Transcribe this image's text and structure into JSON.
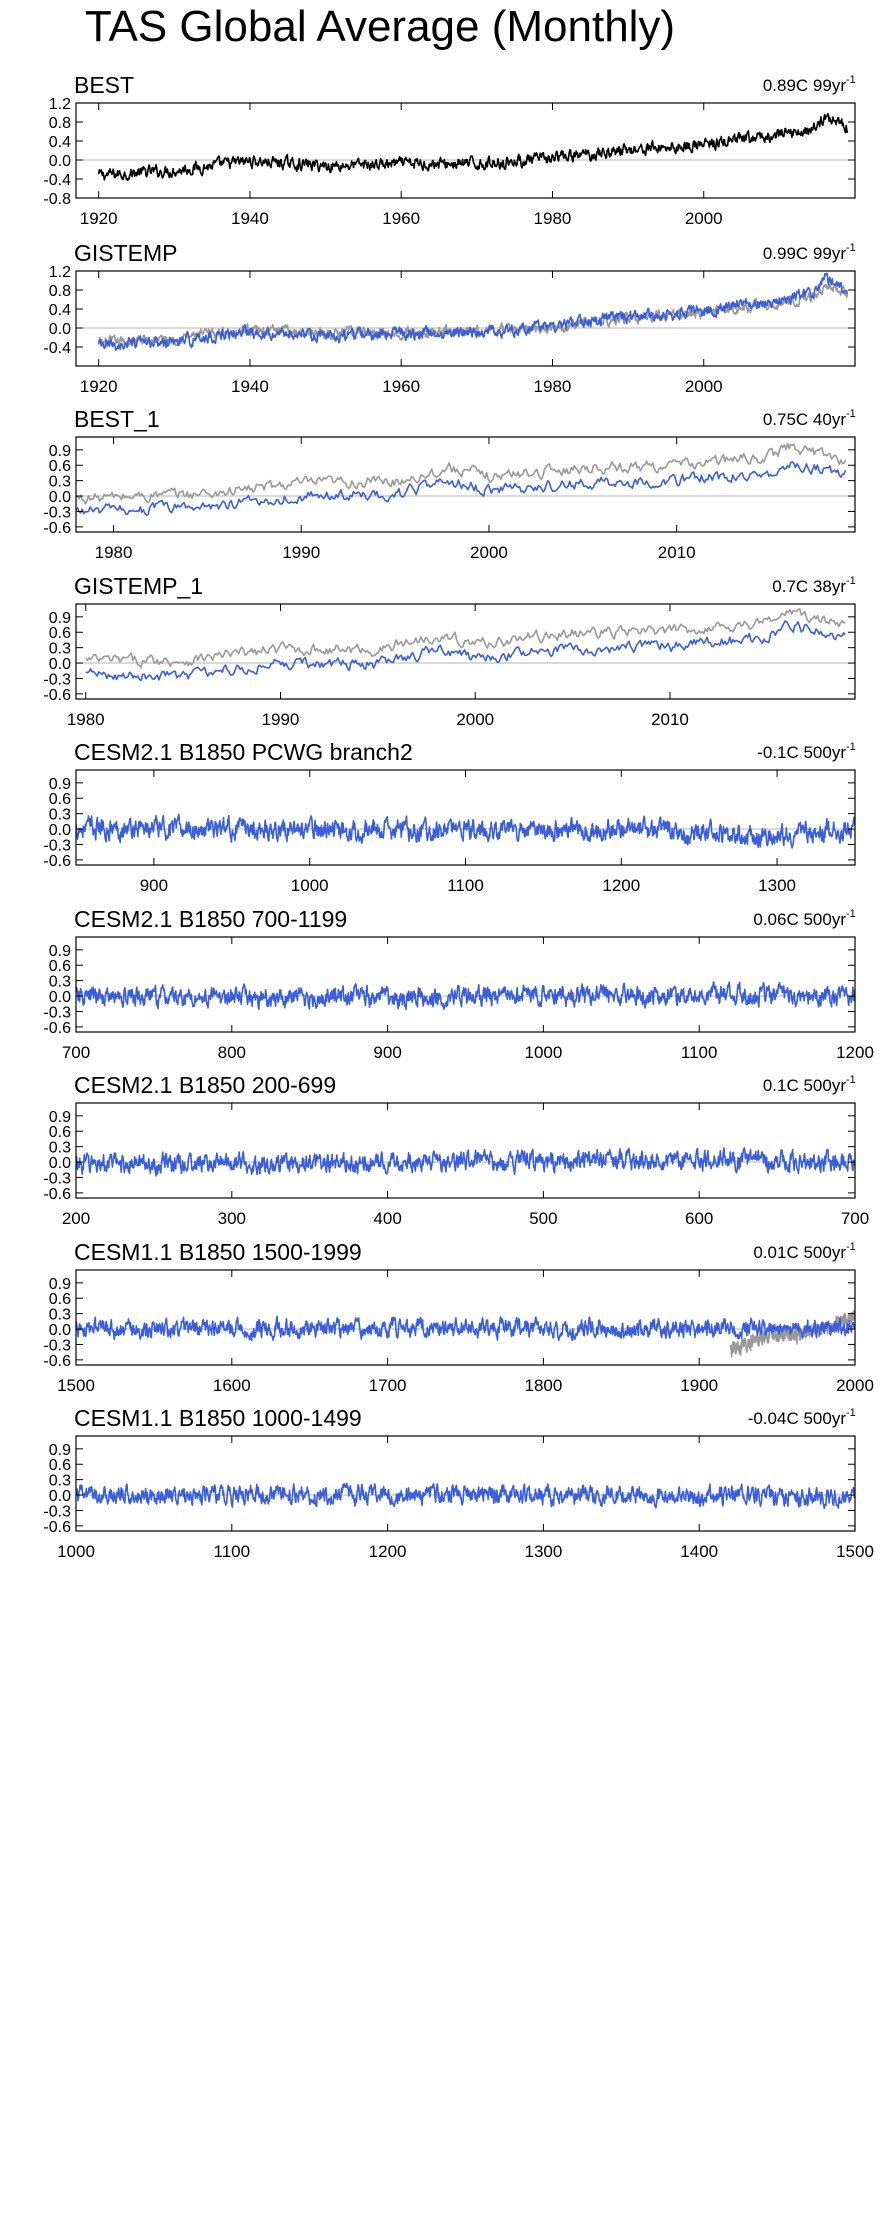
{
  "page": {
    "title": "TAS Global Average (Monthly)"
  },
  "colors": {
    "primary_series": "#3b5fd9",
    "reference_series": "#999999",
    "observation_series": "#000000",
    "zero_line": "#b3b3b3"
  },
  "chart_data": [
    {
      "type": "line",
      "title": "BEST",
      "trend_label": "0.89C 99yr",
      "trend_exponent": "-1",
      "xlim": [
        1917,
        2020
      ],
      "ylim": [
        -0.8,
        1.2
      ],
      "xticks": [
        1920,
        1940,
        1960,
        1980,
        2000
      ],
      "yticks": [
        -0.8,
        -0.4,
        0.0,
        0.4,
        0.8,
        1.2
      ],
      "ytick_labels": [
        "-0.8",
        "-0.4",
        "0.0",
        "0.4",
        "0.8",
        "1.2"
      ],
      "series": [
        {
          "name": "BEST",
          "color": "#000000",
          "start": 1920,
          "end": 2019,
          "n": 1188,
          "anchors": [
            [
              1920,
              -0.32
            ],
            [
              1930,
              -0.22
            ],
            [
              1940,
              -0.02
            ],
            [
              1950,
              -0.12
            ],
            [
              1960,
              -0.08
            ],
            [
              1970,
              -0.08
            ],
            [
              1980,
              0.03
            ],
            [
              1990,
              0.22
            ],
            [
              2000,
              0.32
            ],
            [
              2010,
              0.52
            ],
            [
              2015,
              0.68
            ],
            [
              2016,
              0.92
            ],
            [
              2019,
              0.72
            ]
          ],
          "noise": 0.1
        }
      ]
    },
    {
      "type": "line",
      "title": "GISTEMP",
      "trend_label": "0.99C 99yr",
      "trend_exponent": "-1",
      "xlim": [
        1917,
        2020
      ],
      "ylim": [
        -0.8,
        1.2
      ],
      "xticks": [
        1920,
        1940,
        1960,
        1980,
        2000
      ],
      "yticks": [
        -0.4,
        0.0,
        0.4,
        0.8,
        1.2
      ],
      "ytick_labels": [
        "-0.4",
        "0.0",
        "0.4",
        "0.8",
        "1.2"
      ],
      "series": [
        {
          "name": "BEST",
          "color": "#999999",
          "start": 1920,
          "end": 2019,
          "n": 1188,
          "anchors": [
            [
              1920,
              -0.32
            ],
            [
              1930,
              -0.22
            ],
            [
              1940,
              -0.02
            ],
            [
              1950,
              -0.12
            ],
            [
              1960,
              -0.08
            ],
            [
              1970,
              -0.08
            ],
            [
              1980,
              0.03
            ],
            [
              1990,
              0.22
            ],
            [
              2000,
              0.32
            ],
            [
              2010,
              0.52
            ],
            [
              2015,
              0.68
            ],
            [
              2016,
              0.92
            ],
            [
              2019,
              0.72
            ]
          ],
          "noise": 0.09
        },
        {
          "name": "GISTEMP",
          "color": "#3b5fd9",
          "start": 1920,
          "end": 2019,
          "n": 1188,
          "anchors": [
            [
              1920,
              -0.38
            ],
            [
              1930,
              -0.3
            ],
            [
              1940,
              -0.06
            ],
            [
              1950,
              -0.18
            ],
            [
              1960,
              -0.1
            ],
            [
              1970,
              -0.1
            ],
            [
              1980,
              0.05
            ],
            [
              1990,
              0.24
            ],
            [
              2000,
              0.36
            ],
            [
              2010,
              0.6
            ],
            [
              2015,
              0.78
            ],
            [
              2016,
              1.05
            ],
            [
              2019,
              0.8
            ]
          ],
          "noise": 0.1
        }
      ]
    },
    {
      "type": "line",
      "title": "BEST_1",
      "trend_label": "0.75C 40yr",
      "trend_exponent": "-1",
      "xlim": [
        1978,
        2019.5
      ],
      "ylim": [
        -0.7,
        1.15
      ],
      "xticks": [
        1980,
        1990,
        2000,
        2010
      ],
      "yticks": [
        -0.6,
        -0.3,
        0.0,
        0.3,
        0.6,
        0.9
      ],
      "ytick_labels": [
        "-0.6",
        "-0.3",
        "0.0",
        "0.3",
        "0.6",
        "0.9"
      ],
      "series": [
        {
          "name": "BEST",
          "color": "#999999",
          "start": 1978,
          "end": 2019,
          "n": 492,
          "anchors": [
            [
              1978,
              -0.05
            ],
            [
              1985,
              0.05
            ],
            [
              1990,
              0.25
            ],
            [
              1995,
              0.28
            ],
            [
              1998,
              0.55
            ],
            [
              2000,
              0.38
            ],
            [
              2005,
              0.55
            ],
            [
              2010,
              0.6
            ],
            [
              2015,
              0.78
            ],
            [
              2016,
              0.98
            ],
            [
              2019,
              0.7
            ]
          ],
          "noise": 0.09
        },
        {
          "name": "BEST_1",
          "color": "#3b5fd9",
          "start": 1978,
          "end": 2019,
          "n": 492,
          "anchors": [
            [
              1978,
              -0.3
            ],
            [
              1985,
              -0.2
            ],
            [
              1990,
              0.0
            ],
            [
              1995,
              0.02
            ],
            [
              1998,
              0.28
            ],
            [
              2000,
              0.1
            ],
            [
              2005,
              0.25
            ],
            [
              2010,
              0.3
            ],
            [
              2015,
              0.45
            ],
            [
              2016,
              0.65
            ],
            [
              2019,
              0.42
            ]
          ],
          "noise": 0.09
        }
      ]
    },
    {
      "type": "line",
      "title": "GISTEMP_1",
      "trend_label": "0.7C 38yr",
      "trend_exponent": "-1",
      "xlim": [
        1979.5,
        2019.5
      ],
      "ylim": [
        -0.7,
        1.15
      ],
      "xticks": [
        1980,
        1990,
        2000,
        2010
      ],
      "yticks": [
        -0.6,
        -0.3,
        0.0,
        0.3,
        0.6,
        0.9
      ],
      "ytick_labels": [
        "-0.6",
        "-0.3",
        "0.0",
        "0.3",
        "0.6",
        "0.9"
      ],
      "series": [
        {
          "name": "BEST",
          "color": "#999999",
          "start": 1980,
          "end": 2019,
          "n": 468,
          "anchors": [
            [
              1980,
              0.05
            ],
            [
              1985,
              0.05
            ],
            [
              1990,
              0.28
            ],
            [
              1995,
              0.25
            ],
            [
              1998,
              0.55
            ],
            [
              2000,
              0.38
            ],
            [
              2005,
              0.58
            ],
            [
              2010,
              0.62
            ],
            [
              2015,
              0.8
            ],
            [
              2016,
              1.0
            ],
            [
              2019,
              0.72
            ]
          ],
          "noise": 0.09
        },
        {
          "name": "GISTEMP_1",
          "color": "#3b5fd9",
          "start": 1980,
          "end": 2019,
          "n": 468,
          "anchors": [
            [
              1980,
              -0.22
            ],
            [
              1985,
              -0.25
            ],
            [
              1990,
              0.0
            ],
            [
              1995,
              -0.02
            ],
            [
              1998,
              0.25
            ],
            [
              2000,
              0.08
            ],
            [
              2005,
              0.28
            ],
            [
              2010,
              0.32
            ],
            [
              2015,
              0.5
            ],
            [
              2016,
              0.75
            ],
            [
              2019,
              0.5
            ]
          ],
          "noise": 0.09
        }
      ]
    },
    {
      "type": "line",
      "title": "CESM2.1 B1850 PCWG branch2",
      "trend_label": "-0.1C 500yr",
      "trend_exponent": "-1",
      "xlim": [
        850,
        1350
      ],
      "ylim": [
        -0.7,
        1.15
      ],
      "xticks": [
        900,
        1000,
        1100,
        1200,
        1300
      ],
      "yticks": [
        -0.6,
        -0.3,
        0.0,
        0.3,
        0.6,
        0.9
      ],
      "ytick_labels": [
        "-0.6",
        "-0.3",
        "0.0",
        "0.3",
        "0.6",
        "0.9"
      ],
      "series": [
        {
          "name": "PCWG branch2",
          "color": "#3b5fd9",
          "start": 850,
          "end": 1350,
          "n": 1500,
          "anchors": [
            [
              850,
              0.02
            ],
            [
              1000,
              0.0
            ],
            [
              1100,
              -0.02
            ],
            [
              1200,
              0.0
            ],
            [
              1280,
              -0.12
            ],
            [
              1350,
              -0.02
            ]
          ],
          "noise": 0.16
        }
      ]
    },
    {
      "type": "line",
      "title": "CESM2.1 B1850 700-1199",
      "trend_label": "0.06C 500yr",
      "trend_exponent": "-1",
      "xlim": [
        700,
        1200
      ],
      "ylim": [
        -0.7,
        1.15
      ],
      "xticks": [
        700,
        800,
        900,
        1000,
        1100,
        1200
      ],
      "yticks": [
        -0.6,
        -0.3,
        0.0,
        0.3,
        0.6,
        0.9
      ],
      "ytick_labels": [
        "-0.6",
        "-0.3",
        "0.0",
        "0.3",
        "0.6",
        "0.9"
      ],
      "series": [
        {
          "name": "700-1199",
          "color": "#3b5fd9",
          "start": 700,
          "end": 1200,
          "n": 1500,
          "anchors": [
            [
              700,
              -0.02
            ],
            [
              850,
              -0.03
            ],
            [
              1000,
              0.03
            ],
            [
              1200,
              0.01
            ]
          ],
          "noise": 0.15
        }
      ]
    },
    {
      "type": "line",
      "title": "CESM2.1 B1850 200-699",
      "trend_label": "0.1C 500yr",
      "trend_exponent": "-1",
      "xlim": [
        200,
        700
      ],
      "ylim": [
        -0.7,
        1.15
      ],
      "xticks": [
        200,
        300,
        400,
        500,
        600,
        700
      ],
      "yticks": [
        -0.6,
        -0.3,
        0.0,
        0.3,
        0.6,
        0.9
      ],
      "ytick_labels": [
        "-0.6",
        "-0.3",
        "0.0",
        "0.3",
        "0.6",
        "0.9"
      ],
      "series": [
        {
          "name": "200-699",
          "color": "#3b5fd9",
          "start": 200,
          "end": 700,
          "n": 1500,
          "anchors": [
            [
              200,
              -0.03
            ],
            [
              350,
              -0.02
            ],
            [
              500,
              0.03
            ],
            [
              700,
              0.02
            ]
          ],
          "noise": 0.15
        }
      ]
    },
    {
      "type": "line",
      "title": "CESM1.1 B1850 1500-1999",
      "trend_label": "0.01C 500yr",
      "trend_exponent": "-1",
      "xlim": [
        1500,
        2000
      ],
      "ylim": [
        -0.7,
        1.15
      ],
      "xticks": [
        1500,
        1600,
        1700,
        1800,
        1900,
        2000
      ],
      "yticks": [
        -0.6,
        -0.3,
        0.0,
        0.3,
        0.6,
        0.9
      ],
      "ytick_labels": [
        "-0.6",
        "-0.3",
        "0.0",
        "0.3",
        "0.6",
        "0.9"
      ],
      "series": [
        {
          "name": "BEST",
          "color": "#999999",
          "start": 1920,
          "end": 2000,
          "n": 600,
          "anchors": [
            [
              1920,
              -0.4
            ],
            [
              1930,
              -0.3
            ],
            [
              1945,
              -0.1
            ],
            [
              1960,
              -0.12
            ],
            [
              1980,
              0.0
            ],
            [
              2000,
              0.3
            ]
          ],
          "noise": 0.11
        },
        {
          "name": "1500-1999",
          "color": "#3b5fd9",
          "start": 1500,
          "end": 2000,
          "n": 1500,
          "anchors": [
            [
              1500,
              0.0
            ],
            [
              1700,
              0.01
            ],
            [
              1900,
              0.0
            ],
            [
              2000,
              0.02
            ]
          ],
          "noise": 0.14
        }
      ]
    },
    {
      "type": "line",
      "title": "CESM1.1 B1850 1000-1499",
      "trend_label": "-0.04C 500yr",
      "trend_exponent": "-1",
      "xlim": [
        1000,
        1500
      ],
      "ylim": [
        -0.7,
        1.15
      ],
      "xticks": [
        1000,
        1100,
        1200,
        1300,
        1400,
        1500
      ],
      "yticks": [
        -0.6,
        -0.3,
        0.0,
        0.3,
        0.6,
        0.9
      ],
      "ytick_labels": [
        "-0.6",
        "-0.3",
        "0.0",
        "0.3",
        "0.6",
        "0.9"
      ],
      "series": [
        {
          "name": "1000-1499",
          "color": "#3b5fd9",
          "start": 1000,
          "end": 1500,
          "n": 1500,
          "anchors": [
            [
              1000,
              0.0
            ],
            [
              1200,
              0.01
            ],
            [
              1350,
              -0.01
            ],
            [
              1500,
              -0.03
            ]
          ],
          "noise": 0.14
        }
      ]
    }
  ]
}
